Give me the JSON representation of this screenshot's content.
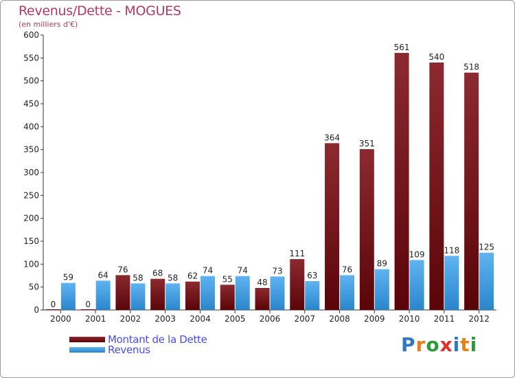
{
  "title": "Revenus/Dette - MOGUES",
  "subtitle": "(en milliers d'€)",
  "colors": {
    "dette": "#6b0a0f",
    "revenus": "#3f9be0",
    "title": "#b03a5e",
    "legend_text": "#4a4af0"
  },
  "legend": {
    "dette_label": "Montant de la Dette",
    "revenus_label": "Revenus"
  },
  "logo": {
    "letters": [
      "P",
      "r",
      "o",
      "x",
      "i",
      "t",
      "i"
    ],
    "colors": [
      "#2f78c4",
      "#e8801a",
      "#2f9a3a",
      "#e0302a",
      "#2f78c4",
      "#e8801a",
      "#2f9a3a"
    ]
  },
  "chart_data": {
    "type": "bar",
    "title": "Revenus/Dette - MOGUES",
    "ylabel": "(en milliers d'€)",
    "xlabel": "",
    "categories": [
      "2000",
      "2001",
      "2002",
      "2003",
      "2004",
      "2005",
      "2006",
      "2007",
      "2008",
      "2009",
      "2010",
      "2011",
      "2012"
    ],
    "series": [
      {
        "name": "Montant de la Dette",
        "values": [
          0,
          0,
          76,
          68,
          62,
          55,
          48,
          111,
          364,
          351,
          561,
          540,
          518
        ]
      },
      {
        "name": "Revenus",
        "values": [
          59,
          64,
          58,
          58,
          74,
          74,
          73,
          63,
          76,
          89,
          109,
          118,
          125
        ]
      }
    ],
    "ylim": [
      0,
      600
    ],
    "yticks": [
      0,
      50,
      100,
      150,
      200,
      250,
      300,
      350,
      400,
      450,
      500,
      550,
      600
    ],
    "grid": false,
    "legend_position": "bottom-left"
  }
}
